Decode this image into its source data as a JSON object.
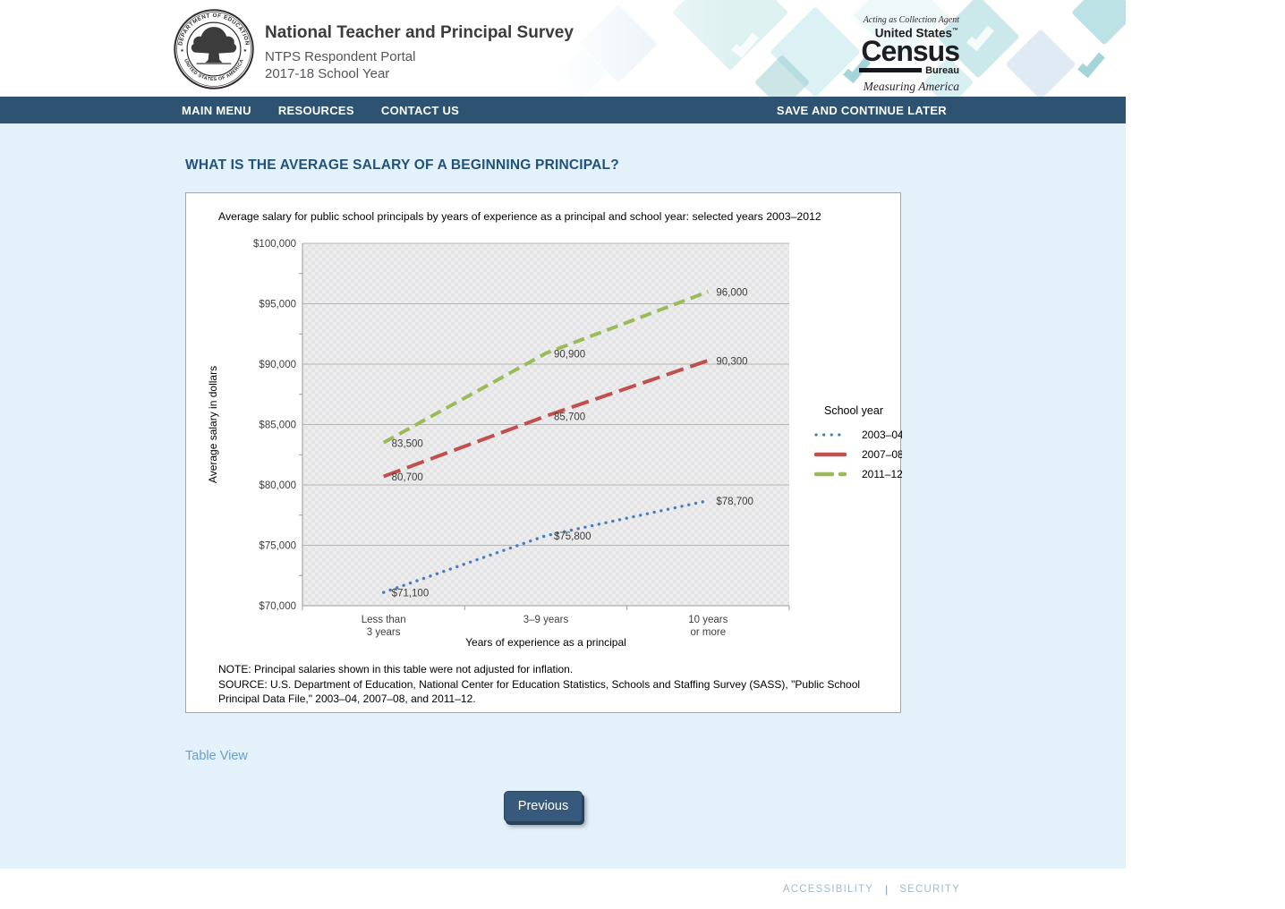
{
  "header": {
    "app_title": "National Teacher and Principal Survey",
    "subtitle1": "NTPS Respondent Portal",
    "subtitle2": "2017-18 School Year",
    "seal": {
      "top_text": "DEPARTMENT OF EDUCATION",
      "bottom_text": "UNITED STATES OF AMERICA",
      "star": "★"
    },
    "census": {
      "tagline": "Acting as Collection Agent",
      "line1": "United States",
      "tm": "™",
      "name": "Census",
      "bureau": "Bureau",
      "motto": "Measuring America"
    }
  },
  "nav": {
    "items": [
      {
        "label": "MAIN MENU"
      },
      {
        "label": "RESOURCES"
      },
      {
        "label": "CONTACT US"
      }
    ],
    "save_label": "SAVE AND CONTINUE LATER"
  },
  "main": {
    "question_title": "WHAT IS THE AVERAGE SALARY OF A BEGINNING PRINCIPAL?",
    "table_view_link": "Table View",
    "previous_button": "Previous"
  },
  "chart_data": {
    "type": "line",
    "title": "Average salary for public school principals by years of experience as a principal and school year: selected years 2003–2012",
    "categories": [
      [
        "Less than",
        "3 years"
      ],
      [
        "3–9 years"
      ],
      [
        "10 years",
        "or more"
      ]
    ],
    "xlabel": "Years of experience as a principal",
    "ylabel": "Average salary in dollars",
    "ylim": [
      70000,
      100000
    ],
    "ytick_step": 5000,
    "ytick_minor_step": 2500,
    "legend_title": "School year",
    "legend_position": "right",
    "grid": true,
    "series": [
      {
        "name": "2003–04",
        "values": [
          71100,
          75800,
          78700
        ],
        "data_labels": [
          "$71,100",
          "$75,800",
          "$78,700"
        ],
        "color": "#4a7ebb",
        "dash": "dot"
      },
      {
        "name": "2007–08",
        "values": [
          80700,
          85700,
          90300
        ],
        "data_labels": [
          "80,700",
          "85,700",
          "90,300"
        ],
        "color": "#c0504d",
        "dash": "long"
      },
      {
        "name": "2011–12",
        "values": [
          83500,
          90900,
          96000
        ],
        "data_labels": [
          "83,500",
          "90,900",
          "96,000"
        ],
        "color": "#9bbb59",
        "dash": "short"
      }
    ],
    "note": "NOTE: Principal salaries shown in this table were not adjusted for inflation.",
    "source": "SOURCE: U.S. Department of Education, National Center for Education Statistics, Schools and Staffing Survey (SASS), \"Public School Principal Data File,\" 2003–04, 2007–08, and 2011–12."
  },
  "footer": {
    "links": [
      "ACCESSIBILITY",
      "SECURITY"
    ],
    "separator": "|"
  },
  "colors": {
    "nav_bg": "#2e5271",
    "content_bg": "#e3f1fb",
    "heading": "#20527c",
    "link": "#6d9ec7",
    "button_bg": "#375a7c"
  }
}
